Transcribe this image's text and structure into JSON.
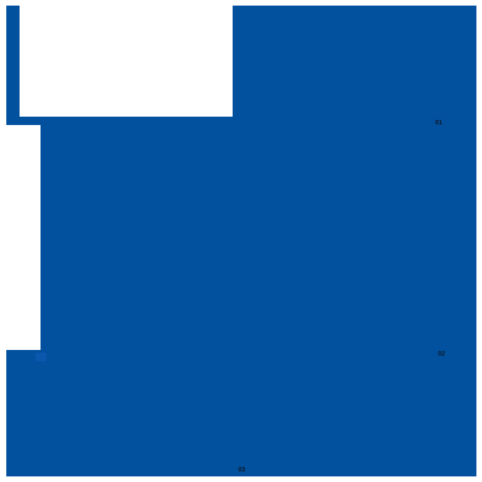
{
  "colors": {
    "field_blue": "#02519e",
    "accent_square_blue": "#0a57ae",
    "label_dark": "#0e1626",
    "white": "#ffffff"
  },
  "markers": {
    "marker_1": "01",
    "marker_2": "02",
    "marker_3": "03"
  }
}
